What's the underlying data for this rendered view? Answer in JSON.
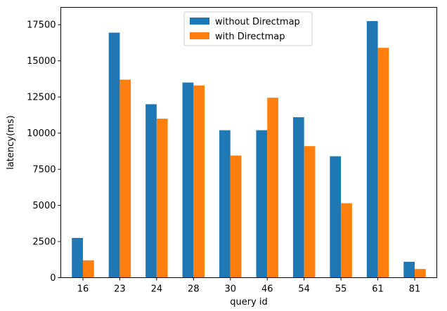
{
  "chart_data": {
    "type": "bar",
    "title": "",
    "xlabel": "query id",
    "ylabel": "latency(ms)",
    "categories": [
      "16",
      "23",
      "24",
      "28",
      "30",
      "46",
      "54",
      "55",
      "61",
      "81"
    ],
    "series": [
      {
        "name": "without Directmap",
        "color": "#1f77b4",
        "values": [
          2750,
          16950,
          12000,
          13500,
          10200,
          10200,
          11100,
          8400,
          17750,
          1100
        ]
      },
      {
        "name": "with Directmap",
        "color": "#ff7f0e",
        "values": [
          1200,
          13700,
          11000,
          13300,
          8450,
          12450,
          9100,
          5150,
          15900,
          600
        ]
      }
    ],
    "ylim": [
      0,
      18700
    ],
    "yticks": [
      0,
      2500,
      5000,
      7500,
      10000,
      12500,
      15000,
      17500
    ],
    "legend": "top-center",
    "grid": false
  }
}
